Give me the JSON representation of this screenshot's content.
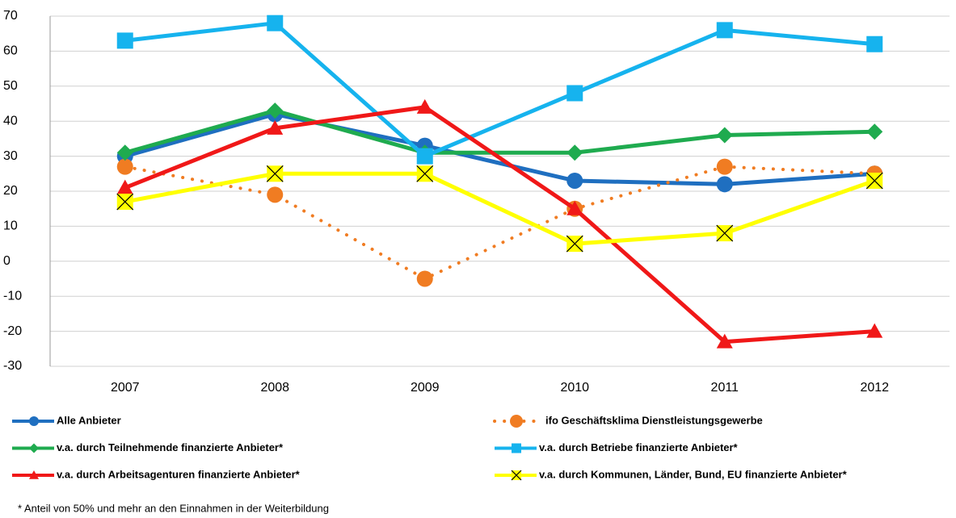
{
  "chart_data": {
    "type": "line",
    "categories": [
      "2007",
      "2008",
      "2009",
      "2010",
      "2011",
      "2012"
    ],
    "ylim": [
      -30,
      70
    ],
    "yticks": [
      -30,
      -20,
      -10,
      0,
      10,
      20,
      30,
      40,
      50,
      60,
      70
    ],
    "grid": true,
    "series": [
      {
        "name": "Alle Anbieter",
        "color": "#1f6fc0",
        "marker": "circle",
        "values": [
          30,
          42,
          33,
          23,
          22,
          25
        ]
      },
      {
        "name": "ifo Geschäftsklima Dienstleistungsgewerbe",
        "color": "#f07c22",
        "marker": "circle",
        "dash": "dotted",
        "values": [
          27,
          19,
          -5,
          15,
          27,
          25
        ]
      },
      {
        "name": "v.a.  durch Teilnehmende finanzierte Anbieter*",
        "color": "#1fab4f",
        "marker": "diamond",
        "values": [
          31,
          43,
          31,
          31,
          36,
          37
        ]
      },
      {
        "name": "v.a. durch Betriebe finanzierte Anbieter*",
        "color": "#16b3ee",
        "marker": "square",
        "values": [
          63,
          68,
          30,
          48,
          66,
          62
        ]
      },
      {
        "name": "v.a. durch Arbeitsagenturen finanzierte Anbieter*",
        "color": "#f01818",
        "marker": "triangle",
        "values": [
          21,
          38,
          44,
          15,
          -23,
          -20
        ]
      },
      {
        "name": "v.a. durch Kommunen, Länder, Bund, EU finanzierte Anbieter*",
        "color": "#ffff00",
        "marker": "x",
        "values": [
          17,
          25,
          25,
          5,
          8,
          23
        ]
      }
    ],
    "footnote": "* Anteil von 50% und mehr an den Einnahmen in der Weiterbildung"
  }
}
